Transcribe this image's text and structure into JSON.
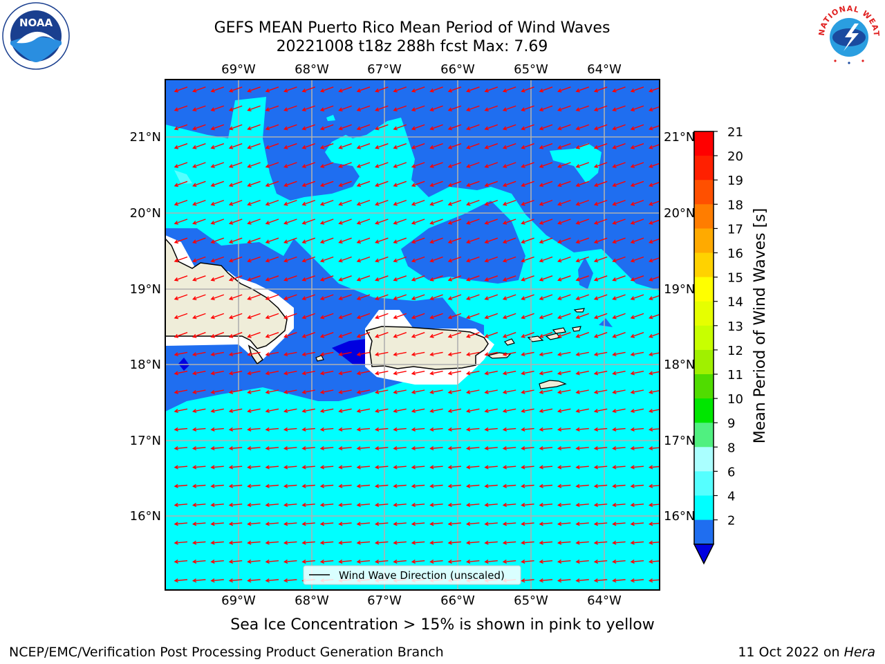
{
  "header": {
    "title_line1": "GEFS MEAN Puerto Rico Mean Period of Wind Waves",
    "title_line2": "20221008 t18z 288h fcst   Max: 7.69"
  },
  "logos": {
    "left": {
      "text": "NOAA",
      "icon": "noaa-logo-icon"
    },
    "right": {
      "ring_text": "NATIONAL WEATHER SERVICE",
      "icon": "nws-logo-icon"
    }
  },
  "map": {
    "lon_labels": [
      "69°W",
      "68°W",
      "67°W",
      "66°W",
      "65°W",
      "64°W"
    ],
    "lat_labels": [
      "21°N",
      "20°N",
      "19°N",
      "18°N",
      "17°N",
      "16°N"
    ],
    "legend_label": "Wind Wave Direction (unscaled)",
    "colors": {
      "deep": "#0000e0",
      "blue": "#1f6ef0",
      "cyan": "#00ffff",
      "land": "#efedd9",
      "arrow": "#ff0000",
      "grid": "#b0b0b0"
    }
  },
  "colorbar": {
    "label": "Mean Period of Wind Waves [s]",
    "ticks": [
      "21",
      "20",
      "19",
      "18",
      "17",
      "16",
      "15",
      "14",
      "13",
      "12",
      "11",
      "10",
      "9",
      "8",
      "6",
      "4",
      "2"
    ],
    "colors": [
      "#ff0000",
      "#ff2000",
      "#ff5000",
      "#ff7d00",
      "#ffaa00",
      "#ffd200",
      "#ffff00",
      "#e6ff00",
      "#c8ff00",
      "#a0f000",
      "#50dc00",
      "#00e600",
      "#50f080",
      "#aaffff",
      "#55ffff",
      "#00ffff",
      "#1f6ef0"
    ],
    "extend_color": "#0000e0"
  },
  "notes": {
    "sea_ice": "Sea Ice Concentration > 15% is shown in pink to yellow"
  },
  "footer": {
    "left": "NCEP/EMC/Verification Post Processing Product Generation Branch",
    "date": "11 Oct 2022 on ",
    "host": "Hera"
  }
}
